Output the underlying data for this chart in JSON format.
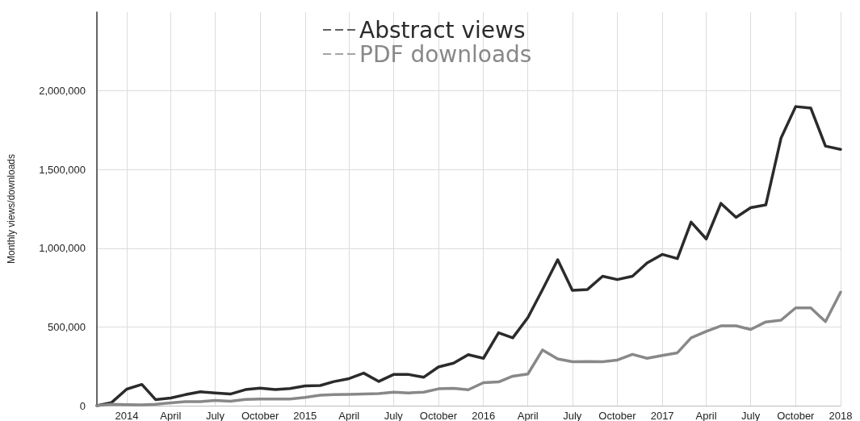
{
  "chart_data": {
    "type": "line",
    "ylabel": "Monthly views/downloads",
    "x": [
      "2013-11",
      "2013-12",
      "2014-01",
      "2014-02",
      "2014-03",
      "2014-04",
      "2014-05",
      "2014-06",
      "2014-07",
      "2014-08",
      "2014-09",
      "2014-10",
      "2014-11",
      "2014-12",
      "2015-01",
      "2015-02",
      "2015-03",
      "2015-04",
      "2015-05",
      "2015-06",
      "2015-07",
      "2015-08",
      "2015-09",
      "2015-10",
      "2015-11",
      "2015-12",
      "2016-01",
      "2016-02",
      "2016-03",
      "2016-04",
      "2016-05",
      "2016-06",
      "2016-07",
      "2016-08",
      "2016-09",
      "2016-10",
      "2016-11",
      "2016-12",
      "2017-01",
      "2017-02",
      "2017-03",
      "2017-04",
      "2017-05",
      "2017-06",
      "2017-07",
      "2017-08",
      "2017-09",
      "2017-10",
      "2017-11",
      "2017-12",
      "2018-01"
    ],
    "series": [
      {
        "name": "Abstract views",
        "color": "#2b2b2b",
        "values": [
          0,
          20000,
          105000,
          135000,
          39000,
          49000,
          70000,
          88000,
          81000,
          74000,
          102000,
          112000,
          102000,
          109000,
          126000,
          128000,
          153000,
          172000,
          207000,
          154000,
          198000,
          198000,
          181000,
          246000,
          270000,
          324000,
          301000,
          463000,
          431000,
          560000,
          738000,
          927000,
          733000,
          738000,
          822000,
          801000,
          822000,
          907000,
          961000,
          934000,
          1166000,
          1059000,
          1285000,
          1196000,
          1258000,
          1276000,
          1699000,
          1900000,
          1890000,
          1649000,
          1628000
        ]
      },
      {
        "name": "PDF downloads",
        "color": "#888888",
        "values": [
          0,
          9000,
          7000,
          5000,
          9000,
          18000,
          25000,
          26000,
          33000,
          28000,
          40000,
          42000,
          42000,
          42000,
          53000,
          67000,
          70000,
          72000,
          74000,
          77000,
          86000,
          81000,
          86000,
          107000,
          110000,
          101000,
          146000,
          151000,
          187000,
          201000,
          354000,
          297000,
          279000,
          281000,
          279000,
          290000,
          326000,
          301000,
          319000,
          336000,
          431000,
          472000,
          507000,
          507000,
          484000,
          532000,
          543000,
          621000,
          621000,
          534000,
          721000
        ]
      }
    ],
    "xlim": [
      "2013-11",
      "2018-01"
    ],
    "xticks": [
      {
        "value": "2014-01",
        "label": "2014"
      },
      {
        "value": "2014-04",
        "label": "April"
      },
      {
        "value": "2014-07",
        "label": "July"
      },
      {
        "value": "2014-10",
        "label": "October"
      },
      {
        "value": "2015-01",
        "label": "2015"
      },
      {
        "value": "2015-04",
        "label": "April"
      },
      {
        "value": "2015-07",
        "label": "July"
      },
      {
        "value": "2015-10",
        "label": "October"
      },
      {
        "value": "2016-01",
        "label": "2016"
      },
      {
        "value": "2016-04",
        "label": "April"
      },
      {
        "value": "2016-07",
        "label": "July"
      },
      {
        "value": "2016-10",
        "label": "October"
      },
      {
        "value": "2017-01",
        "label": "2017"
      },
      {
        "value": "2017-04",
        "label": "April"
      },
      {
        "value": "2017-07",
        "label": "July"
      },
      {
        "value": "2017-10",
        "label": "October"
      },
      {
        "value": "2018-01",
        "label": "2018"
      }
    ],
    "ylim": [
      0,
      2500000
    ],
    "yticks": [
      0,
      {
        "value": 500000,
        "label": "500,000"
      },
      {
        "value": 1000000,
        "label": "1,000,000"
      },
      {
        "value": 1500000,
        "label": "1,500,000"
      },
      {
        "value": 2000000,
        "label": "2,000,000"
      }
    ],
    "grid": true,
    "legend": "top",
    "marker": "none",
    "line_style": "solid"
  }
}
